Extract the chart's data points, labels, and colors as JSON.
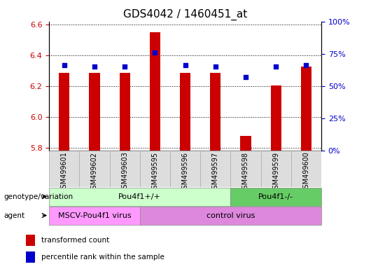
{
  "title": "GDS4042 / 1460451_at",
  "samples": [
    "GSM499601",
    "GSM499602",
    "GSM499603",
    "GSM499595",
    "GSM499596",
    "GSM499597",
    "GSM499598",
    "GSM499599",
    "GSM499600"
  ],
  "transformed_counts": [
    6.285,
    6.285,
    6.285,
    6.55,
    6.285,
    6.285,
    5.875,
    6.205,
    6.325
  ],
  "percentile_ranks": [
    66,
    65,
    65,
    76,
    66,
    65,
    57,
    65,
    66
  ],
  "ylim_left": [
    5.78,
    6.62
  ],
  "ylim_right": [
    0,
    100
  ],
  "yticks_left": [
    5.8,
    6.0,
    6.2,
    6.4,
    6.6
  ],
  "yticks_right": [
    0,
    25,
    50,
    75,
    100
  ],
  "bar_color": "#cc0000",
  "dot_color": "#0000cc",
  "bar_width": 0.35,
  "genotype_groups": [
    {
      "label": "Pou4f1+/+",
      "start": 0,
      "end": 6,
      "color": "#ccffcc"
    },
    {
      "label": "Pou4f1-/-",
      "start": 6,
      "end": 9,
      "color": "#66cc66"
    }
  ],
  "agent_groups": [
    {
      "label": "MSCV-Pou4f1 virus",
      "start": 0,
      "end": 3,
      "color": "#ff99ff"
    },
    {
      "label": "control virus",
      "start": 3,
      "end": 9,
      "color": "#dd88dd"
    }
  ],
  "genotype_label": "genotype/variation",
  "agent_label": "agent",
  "legend_red": "transformed count",
  "legend_blue": "percentile rank within the sample",
  "bar_color_red": "#cc0000",
  "dot_color_blue": "#0000cc",
  "title_fontsize": 11,
  "tick_fontsize": 8,
  "label_fontsize": 8,
  "sample_fontsize": 7
}
